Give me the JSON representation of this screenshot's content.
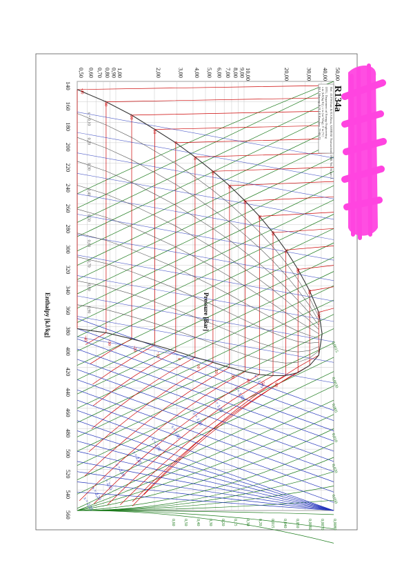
{
  "chart_data": {
    "type": "line",
    "title": "R134a",
    "subtitle_lines": [
      "DTU, Department of Energy Engineering",
      "s in [kJ/(kg K)], v in [m^3/kg], T in [ºC]",
      "M.J. Skovrup & H.J.H Knudsen, 23-08-23"
    ],
    "ref_line": "Ref. :D.P.Wilson & R.S.Basu, ASHRAE Transactions 1988, Vol. 94 part 2.",
    "xlabel": "Enthalpy [kJ/kg]",
    "ylabel": "Pressure [Bar]",
    "x_scale": "linear",
    "y_scale": "log",
    "xlim": [
      140,
      560
    ],
    "ylim": [
      0.5,
      50
    ],
    "x_ticks": [
      "140",
      "160",
      "180",
      "200",
      "220",
      "240",
      "260",
      "280",
      "300",
      "320",
      "340",
      "360",
      "380",
      "400",
      "420",
      "440",
      "460",
      "480",
      "500",
      "520",
      "540",
      "560"
    ],
    "y_ticks": [
      {
        "value": 0.5,
        "label": "0,50"
      },
      {
        "value": 0.6,
        "label": "0,60"
      },
      {
        "value": 0.7,
        "label": "0,70"
      },
      {
        "value": 0.8,
        "label": "0,80"
      },
      {
        "value": 0.9,
        "label": "0,90"
      },
      {
        "value": 1.0,
        "label": "1,00"
      },
      {
        "value": 2.0,
        "label": "2,00"
      },
      {
        "value": 3.0,
        "label": "3,00"
      },
      {
        "value": 4.0,
        "label": "4,00"
      },
      {
        "value": 5.0,
        "label": "5,00"
      },
      {
        "value": 6.0,
        "label": "6,00"
      },
      {
        "value": 7.0,
        "label": "7,00"
      },
      {
        "value": 8.0,
        "label": "8,00"
      },
      {
        "value": 9.0,
        "label": "9,00"
      },
      {
        "value": 10.0,
        "label": "10,00"
      },
      {
        "value": 20.0,
        "label": "20,00"
      },
      {
        "value": 30.0,
        "label": "30,00"
      },
      {
        "value": 40.0,
        "label": "40,00"
      },
      {
        "value": 50.0,
        "label": "50,00"
      }
    ],
    "grid": true,
    "orientation": "rotated-90-clockwise",
    "series": [
      {
        "name": "saturated liquid",
        "color": "#333333",
        "points": [
          [
            148,
            0.5
          ],
          [
            160,
            0.84
          ],
          [
            173,
            1.33
          ],
          [
            187,
            2.01
          ],
          [
            200,
            2.93
          ],
          [
            214,
            4.15
          ],
          [
            228,
            5.72
          ],
          [
            242,
            7.7
          ],
          [
            257,
            10.17
          ],
          [
            272,
            13.18
          ],
          [
            288,
            16.82
          ],
          [
            305,
            21.16
          ],
          [
            324,
            26.33
          ],
          [
            345,
            32.44
          ],
          [
            366,
            38.2
          ],
          [
            387,
            40.6
          ]
        ]
      },
      {
        "name": "saturated vapor",
        "color": "#333333",
        "points": [
          [
            382,
            0.5
          ],
          [
            386,
            0.84
          ],
          [
            392,
            1.33
          ],
          [
            398,
            2.01
          ],
          [
            404,
            2.93
          ],
          [
            410,
            4.15
          ],
          [
            415,
            5.72
          ],
          [
            420,
            7.7
          ],
          [
            424,
            10.17
          ],
          [
            427,
            13.18
          ],
          [
            428,
            16.82
          ],
          [
            428,
            21.16
          ],
          [
            425,
            26.33
          ],
          [
            418,
            32.44
          ],
          [
            408,
            38.2
          ],
          [
            387,
            40.6
          ]
        ]
      }
    ],
    "isotherm_labels": [
      {
        "label": "-40",
        "h": 148,
        "p": 0.55
      },
      {
        "label": "-30",
        "h": 160,
        "p": 0.84
      },
      {
        "label": "-20",
        "h": 173,
        "p": 1.33
      },
      {
        "label": "-10",
        "h": 187,
        "p": 2.01
      },
      {
        "label": "0",
        "h": 200,
        "p": 2.93
      },
      {
        "label": "10",
        "h": 214,
        "p": 4.15
      },
      {
        "label": "20",
        "h": 228,
        "p": 5.72
      },
      {
        "label": "30",
        "h": 242,
        "p": 7.7
      },
      {
        "label": "40",
        "h": 257,
        "p": 10.17
      },
      {
        "label": "50",
        "h": 272,
        "p": 13.18
      },
      {
        "label": "60",
        "h": 288,
        "p": 16.82
      },
      {
        "label": "70",
        "h": 305,
        "p": 21.16
      },
      {
        "label": "80",
        "h": 324,
        "p": 26.33
      },
      {
        "label": "90",
        "h": 345,
        "p": 32.44
      },
      {
        "label": "100",
        "h": 366,
        "p": 38.2
      }
    ],
    "vapor_temp_labels": [
      {
        "label": "-40",
        "h": 382,
        "p": 0.55
      },
      {
        "label": "-30",
        "h": 386,
        "p": 0.84
      },
      {
        "label": "-20",
        "h": 392,
        "p": 1.33
      },
      {
        "label": "-10",
        "h": 398,
        "p": 2.01
      },
      {
        "label": "0",
        "h": 404,
        "p": 2.93
      },
      {
        "label": "10",
        "h": 410,
        "p": 4.15
      },
      {
        "label": "20",
        "h": 415,
        "p": 5.72
      },
      {
        "label": "30",
        "h": 420,
        "p": 7.7
      },
      {
        "label": "40",
        "h": 424,
        "p": 10.17
      },
      {
        "label": "50",
        "h": 427,
        "p": 13.18
      },
      {
        "label": "60",
        "h": 428,
        "p": 16.82
      }
    ],
    "entropy_labels": [
      {
        "label": "s = 1,75",
        "h": 428,
        "p": 12.0
      },
      {
        "label": "s = 1,80",
        "h": 440,
        "p": 8.5
      },
      {
        "label": "s = 1,85",
        "h": 452,
        "p": 5.8
      },
      {
        "label": "s = 1,90",
        "h": 465,
        "p": 4.0
      },
      {
        "label": "s = 1,95",
        "h": 478,
        "p": 2.7
      },
      {
        "label": "s = 2,00",
        "h": 490,
        "p": 1.9
      },
      {
        "label": "s = 2,05",
        "h": 503,
        "p": 1.35
      },
      {
        "label": "s = 2,10",
        "h": 515,
        "p": 1.0
      },
      {
        "label": "s = 2,15",
        "h": 528,
        "p": 0.8
      },
      {
        "label": "s = 2,20",
        "h": 538,
        "p": 0.65
      },
      {
        "label": "s = 2,25",
        "h": 548,
        "p": 0.56
      }
    ],
    "quality_labels": [
      {
        "label": "x = 0,10",
        "h": 170,
        "p": 0.55
      },
      {
        "label": "0,20",
        "h": 195,
        "p": 0.55
      },
      {
        "label": "0,30",
        "h": 220,
        "p": 0.55
      },
      {
        "label": "0,40",
        "h": 245,
        "p": 0.55
      },
      {
        "label": "0,50",
        "h": 270,
        "p": 0.55
      },
      {
        "label": "0,60",
        "h": 295,
        "p": 0.55
      },
      {
        "label": "0,70",
        "h": 315,
        "p": 0.55
      },
      {
        "label": "0,80",
        "h": 338,
        "p": 0.55
      },
      {
        "label": "0,90",
        "h": 360,
        "p": 0.55
      }
    ],
    "volume_labels": [
      {
        "label": "0,0015",
        "h": 395,
        "p": 45.0
      },
      {
        "label": "0,0020",
        "h": 430,
        "p": 45.0
      },
      {
        "label": "0,005",
        "h": 456,
        "p": 45.0
      },
      {
        "label": "0,010",
        "h": 485,
        "p": 45.0
      },
      {
        "label": "0,020",
        "h": 515,
        "p": 45.0
      },
      {
        "label": "0,050",
        "h": 545,
        "p": 45.0
      }
    ],
    "right_edge_volume_labels": [
      "0,0080",
      "0,0070",
      "0,0060",
      "0,050",
      "0,040",
      "0,015",
      "0,20",
      "0,30",
      "0,15",
      "0,20",
      "0,30",
      "0,40",
      "0,50",
      "0,60"
    ]
  },
  "colors": {
    "isotherm": "#cc0000",
    "isentrope": "#2233bb",
    "isochore": "#1a7a1a",
    "saturation": "#333333",
    "grid": "#c9c9c9",
    "redaction": "#ff44e0"
  },
  "redaction": {
    "visible": true,
    "note": ""
  }
}
